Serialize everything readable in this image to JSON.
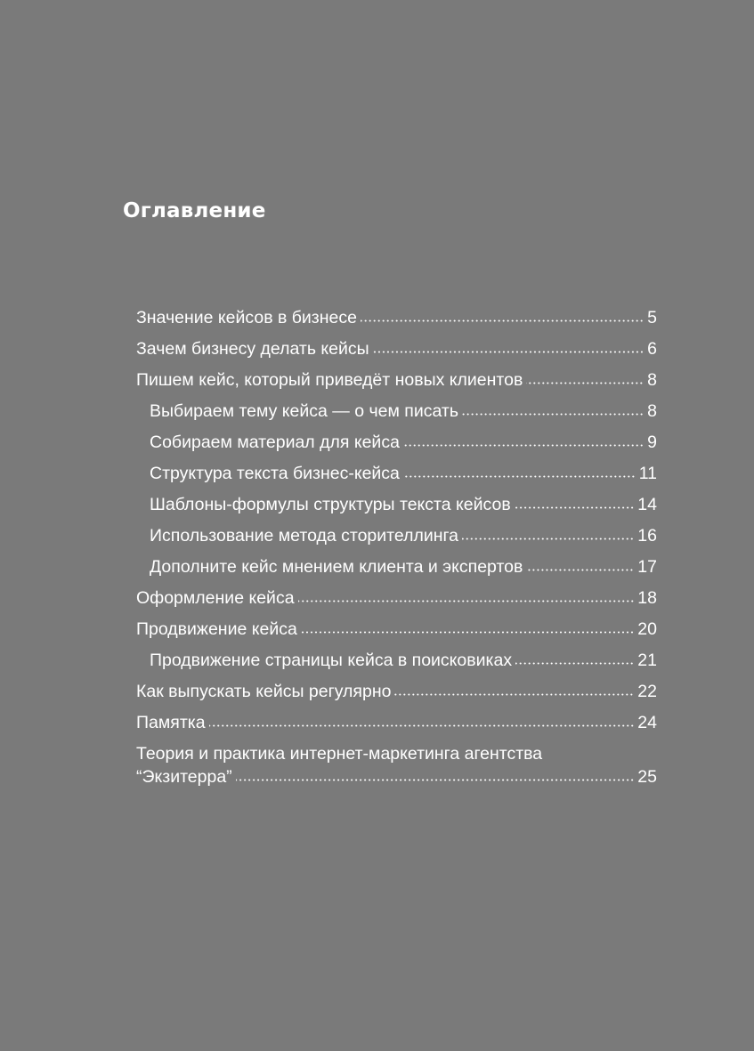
{
  "heading": "Оглавление",
  "toc": [
    {
      "title": "Значение кейсов в бизнесе",
      "page": "5",
      "level": 1
    },
    {
      "title": "Зачем бизнесу делать кейсы",
      "page": "6",
      "level": 1
    },
    {
      "title": "Пишем кейс, который приведёт новых клиентов",
      "page": "8",
      "level": 1
    },
    {
      "title": "Выбираем тему кейса — о чем писать",
      "page": "8",
      "level": 2
    },
    {
      "title": "Собираем материал для кейса",
      "page": "9",
      "level": 2
    },
    {
      "title": "Структура текста бизнес-кейса",
      "page": "11",
      "level": 2
    },
    {
      "title": "Шаблоны-формулы структуры текста кейсов",
      "page": "14",
      "level": 2
    },
    {
      "title": "Использование метода сторителлинга",
      "page": "16",
      "level": 2
    },
    {
      "title": "Дополните кейс мнением клиента и экспертов",
      "page": "17",
      "level": 2
    },
    {
      "title": "Оформление кейса",
      "page": "18",
      "level": 1
    },
    {
      "title": "Продвижение кейса",
      "page": "20",
      "level": 1
    },
    {
      "title": "Продвижение страницы кейса в поисковиках",
      "page": "21",
      "level": 2
    },
    {
      "title": "Как выпускать кейсы регулярно",
      "page": "22",
      "level": 1
    },
    {
      "title": "Памятка",
      "page": "24",
      "level": 1
    }
  ],
  "last_entry": {
    "title_line1": "Теория и практика интернет-маркетинга агентства",
    "title_line2": "“Экзитерра”",
    "page": "25"
  }
}
